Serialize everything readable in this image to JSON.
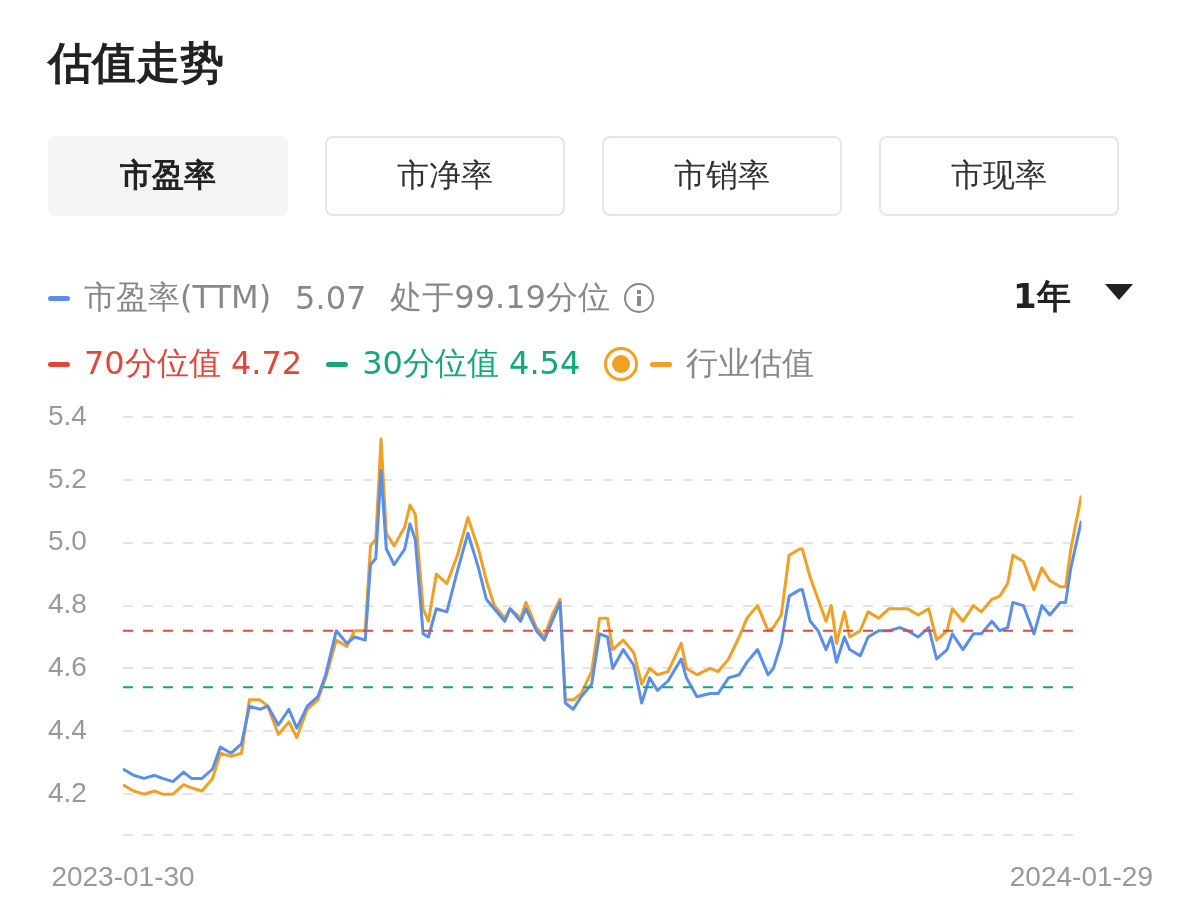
{
  "chart_data": {
    "type": "line",
    "title": "估值走势",
    "annotations": [
      "市盈率",
      "市净率",
      "市销率",
      "市现率",
      "5.07",
      "处于99.19分位",
      "1年"
    ],
    "x": [
      "2023-01-30",
      "2023-02-03",
      "2023-02-07",
      "2023-02-11",
      "2023-02-14",
      "2023-02-18",
      "2023-02-22",
      "2023-02-25",
      "2023-03-01",
      "2023-03-05",
      "2023-03-08",
      "2023-03-12",
      "2023-03-16",
      "2023-03-19",
      "2023-03-23",
      "2023-03-26",
      "2023-03-30",
      "2023-04-03",
      "2023-04-06",
      "2023-04-10",
      "2023-04-14",
      "2023-04-17",
      "2023-04-21",
      "2023-04-25",
      "2023-04-28",
      "2023-05-02",
      "2023-05-04",
      "2023-05-06",
      "2023-05-08",
      "2023-05-10",
      "2023-05-13",
      "2023-05-17",
      "2023-05-19",
      "2023-05-21",
      "2023-05-24",
      "2023-05-26",
      "2023-05-29",
      "2023-06-02",
      "2023-06-06",
      "2023-06-10",
      "2023-06-14",
      "2023-06-17",
      "2023-06-20",
      "2023-06-24",
      "2023-06-26",
      "2023-06-30",
      "2023-07-02",
      "2023-07-06",
      "2023-07-09",
      "2023-07-12",
      "2023-07-15",
      "2023-07-17",
      "2023-07-20",
      "2023-07-23",
      "2023-07-27",
      "2023-07-30",
      "2023-08-02",
      "2023-08-04",
      "2023-08-08",
      "2023-08-12",
      "2023-08-15",
      "2023-08-18",
      "2023-08-21",
      "2023-08-25",
      "2023-08-30",
      "2023-09-01",
      "2023-09-05",
      "2023-09-10",
      "2023-09-13",
      "2023-09-17",
      "2023-09-21",
      "2023-09-24",
      "2023-09-28",
      "2023-10-02",
      "2023-10-04",
      "2023-10-07",
      "2023-10-10",
      "2023-10-14",
      "2023-10-15",
      "2023-10-18",
      "2023-10-21",
      "2023-10-24",
      "2023-10-26",
      "2023-10-28",
      "2023-10-31",
      "2023-11-02",
      "2023-11-06",
      "2023-11-09",
      "2023-11-13",
      "2023-11-17",
      "2023-11-21",
      "2023-11-24",
      "2023-11-28",
      "2023-12-02",
      "2023-12-05",
      "2023-12-09",
      "2023-12-11",
      "2023-12-15",
      "2023-12-19",
      "2023-12-22",
      "2023-12-26",
      "2023-12-29",
      "2024-01-01",
      "2024-01-03",
      "2024-01-07",
      "2024-01-11",
      "2024-01-14",
      "2024-01-17",
      "2024-01-21",
      "2024-01-23",
      "2024-01-25",
      "2024-01-29"
    ],
    "series": [
      {
        "name": "市盈率(TTM)",
        "color": "#5b8ee8",
        "values": [
          4.28,
          4.26,
          4.25,
          4.26,
          4.25,
          4.24,
          4.27,
          4.25,
          4.25,
          4.28,
          4.35,
          4.33,
          4.36,
          4.48,
          4.47,
          4.48,
          4.42,
          4.47,
          4.41,
          4.48,
          4.51,
          4.58,
          4.72,
          4.68,
          4.7,
          4.69,
          4.93,
          4.95,
          5.23,
          4.98,
          4.93,
          4.98,
          5.06,
          5.01,
          4.71,
          4.7,
          4.79,
          4.78,
          4.91,
          5.03,
          4.92,
          4.82,
          4.79,
          4.75,
          4.79,
          4.75,
          4.79,
          4.72,
          4.69,
          4.75,
          4.81,
          4.49,
          4.47,
          4.51,
          4.55,
          4.71,
          4.7,
          4.6,
          4.66,
          4.61,
          4.49,
          4.57,
          4.53,
          4.56,
          4.63,
          4.57,
          4.51,
          4.52,
          4.52,
          4.57,
          4.58,
          4.62,
          4.66,
          4.58,
          4.6,
          4.68,
          4.83,
          4.85,
          4.85,
          4.75,
          4.72,
          4.66,
          4.7,
          4.62,
          4.7,
          4.66,
          4.64,
          4.7,
          4.72,
          4.72,
          4.73,
          4.72,
          4.7,
          4.73,
          4.63,
          4.66,
          4.71,
          4.66,
          4.71,
          4.71,
          4.75,
          4.72,
          4.73,
          4.81,
          4.8,
          4.71,
          4.8,
          4.77,
          4.81,
          4.81,
          4.92,
          5.07
        ]
      },
      {
        "name": "行业估值",
        "color": "#f0a024",
        "values": [
          4.23,
          4.21,
          4.2,
          4.21,
          4.2,
          4.2,
          4.23,
          4.22,
          4.21,
          4.25,
          4.33,
          4.32,
          4.33,
          4.5,
          4.5,
          4.48,
          4.39,
          4.43,
          4.38,
          4.47,
          4.5,
          4.57,
          4.69,
          4.67,
          4.72,
          4.72,
          4.99,
          5.01,
          5.33,
          5.03,
          4.99,
          5.05,
          5.12,
          5.09,
          4.79,
          4.75,
          4.9,
          4.87,
          4.96,
          5.08,
          4.98,
          4.88,
          4.8,
          4.76,
          4.79,
          4.76,
          4.81,
          4.73,
          4.7,
          4.77,
          4.82,
          4.5,
          4.5,
          4.52,
          4.59,
          4.76,
          4.76,
          4.66,
          4.69,
          4.65,
          4.55,
          4.6,
          4.58,
          4.59,
          4.68,
          4.6,
          4.58,
          4.6,
          4.59,
          4.63,
          4.7,
          4.76,
          4.8,
          4.72,
          4.73,
          4.77,
          4.96,
          4.98,
          4.98,
          4.89,
          4.82,
          4.75,
          4.8,
          4.68,
          4.78,
          4.7,
          4.72,
          4.78,
          4.76,
          4.79,
          4.79,
          4.79,
          4.77,
          4.79,
          4.69,
          4.72,
          4.79,
          4.75,
          4.8,
          4.78,
          4.82,
          4.83,
          4.87,
          4.96,
          4.94,
          4.85,
          4.92,
          4.88,
          4.86,
          4.86,
          4.98,
          5.15
        ]
      }
    ],
    "xlim": [
      "2023-01-30",
      "2024-01-29"
    ],
    "xticks": [
      "2023-01-30",
      "2024-01-29"
    ],
    "ylim": [
      4.07,
      5.4
    ],
    "yticks": [
      {
        "value": 4.07,
        "label": null
      },
      4.2,
      4.4,
      4.6,
      4.8,
      {
        "value": 5,
        "label": "5.0"
      },
      5.2,
      5.4
    ],
    "ref_lines": [
      {
        "axis": "y",
        "value": 4.72,
        "label": "70分位值 4.72",
        "color": "#e0473c",
        "line_style": "dashed"
      },
      {
        "axis": "y",
        "value": 4.54,
        "label": "30分位值 4.54",
        "color": "#15a77a",
        "line_style": "dashed"
      }
    ],
    "grid": "y",
    "legend": "top left",
    "marker": "none",
    "line_style": "solid"
  }
}
